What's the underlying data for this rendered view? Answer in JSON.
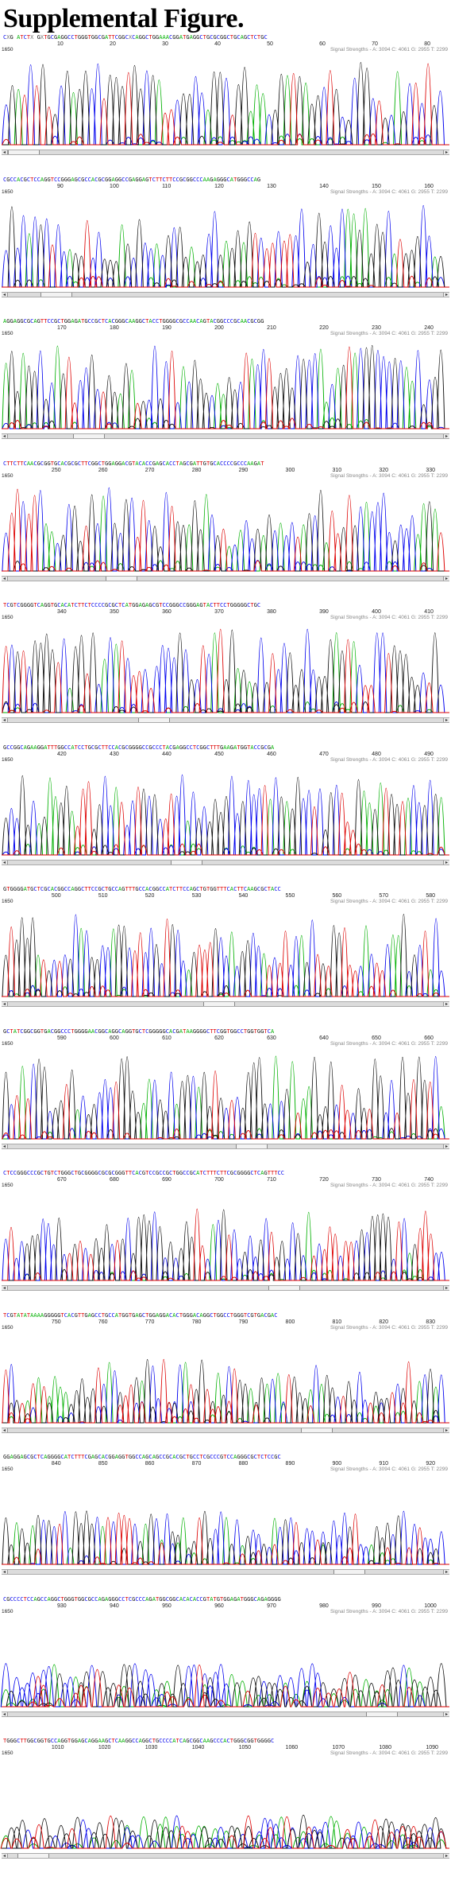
{
  "title": "Supplemental Figure.",
  "signal_strengths": "Signal Strengths - A: 3094 C: 4061 G: 2955 T: 2299",
  "scale_value": "1650",
  "colors": {
    "A": "#00b000",
    "C": "#0000ee",
    "G": "#111111",
    "T": "#dd0000"
  },
  "panels": [
    {
      "sequence": "CXG  ATCTX  GXTGCGAGGCCTGGGTGGCGATTCGGCXCAGGCTGGAAACGGATGAGGCTGCGCGGCTGCAGCTCTGC",
      "positions": [
        "10",
        "20",
        "30",
        "40",
        "50",
        "60",
        "70",
        "80"
      ],
      "scrollbar": true
    },
    {
      "sequence": "CGCCACGCTCCAGGTCCGGGAGCGCCACGCGGAGGCCGAGGAGTCTTCTTCCGCGGCCCAAGAGGGCATGGGCCAG",
      "positions": [
        "90",
        "100",
        "110",
        "120",
        "130",
        "140",
        "150",
        "160"
      ],
      "scrollbar": true
    },
    {
      "sequence": "AGGAGGCGCAGTTCCGCTGGAGATGCCGCTCACGGGCAAGGCTACCTGGGGCGCCAACAGTACGGCCCGCAACGCGG",
      "positions": [
        "170",
        "180",
        "190",
        "200",
        "210",
        "220",
        "230",
        "240"
      ],
      "scrollbar": true
    },
    {
      "sequence": "CTTCTTCAACGCGGTGCACGCGCTTCGGCTGGAGGACGTACACCGAGCACCTAGCGATTGTGCACCCCGCCCAAGAT",
      "positions": [
        "250",
        "260",
        "270",
        "280",
        "290",
        "300",
        "310",
        "320",
        "330"
      ],
      "scrollbar": true
    },
    {
      "sequence": "TCGTCGGGGTCAGGTGCACATCTTCTCCCCGCGCTCATGGAGAGCGTCCGGGCCGGGAGTACTTCCTGGGGGCTGC",
      "positions": [
        "340",
        "350",
        "360",
        "370",
        "380",
        "390",
        "400",
        "410"
      ],
      "scrollbar": true
    },
    {
      "sequence": "GCCGGCAGAAGGATTTGGCCATCCTGCGCTTCCACGCGGGGCCGCCCTACGAGGCCTCGGCTTTGAAGATGGTACCGCGA",
      "positions": [
        "420",
        "430",
        "440",
        "450",
        "460",
        "470",
        "480",
        "490"
      ],
      "scrollbar": true
    },
    {
      "sequence": "GTGGGGATGCTCGCACGGCCAGGCTTCCGCTGCCAGTTTGCCACGGCCATCTTCCAGCTGTGGTTTCACTTCAAGCGCTACC",
      "positions": [
        "500",
        "510",
        "520",
        "530",
        "540",
        "550",
        "560",
        "570",
        "580"
      ],
      "scrollbar": true
    },
    {
      "sequence": "GCTATCGGCGGTGACGGCCCTGGGGAACGGCAGGCAGGTGCTCGGGGGCACGATAAGGGGCTTCGGTGGCCTGGTGGTCA",
      "positions": [
        "590",
        "600",
        "610",
        "620",
        "630",
        "640",
        "650",
        "660"
      ],
      "scrollbar": true
    },
    {
      "sequence": "CTCCGGGCCCGCTGTCTGGGCTGCGGGGCGCGCGGGTTCACGTCCGCCGCTGGCCGCATCTTTCTTCGCGGGGCTCAGTTTCC",
      "positions": [
        "670",
        "680",
        "690",
        "700",
        "710",
        "720",
        "730",
        "740"
      ],
      "scrollbar": true
    },
    {
      "sequence": "TCGTATATAAAAGGGGGTCACGTTGAGCCTGCCATGGTGAGCTGGAGGACACTGGGACAGGCTGGCCTGGGTCGTGACGAC",
      "positions": [
        "750",
        "760",
        "770",
        "780",
        "790",
        "800",
        "810",
        "820",
        "830"
      ],
      "scrollbar": true
    },
    {
      "sequence": "GGAGGAGCGCTCAGGGGCATCTTTCGAGCACGGAGGTGGCCAGCAGCCGCACGCTGCCTCGCCCGTCCAGGGCGCTCTCCGC",
      "positions": [
        "840",
        "850",
        "860",
        "870",
        "880",
        "890",
        "900",
        "910",
        "920"
      ],
      "scrollbar": true
    },
    {
      "sequence": "CGCCCCTCCAGCCAGGCTGGGTGGCGCCAGAGGGCCTCGCCCAGATGGCGGCACACACCGTATGTGGAGATGGGCAGAGGGG",
      "positions": [
        "930",
        "940",
        "950",
        "960",
        "970",
        "980",
        "990",
        "1000"
      ],
      "scrollbar": true
    },
    {
      "sequence": "TGGGCTTGGCGGTGCCAGGTGGAGCAGGAAGCTCAAGGCCAGGCTGCCCCATCAGCGGCAAGCCCACTGGGCGGTGGGGC",
      "positions": [
        "1010",
        "1020",
        "1030",
        "1040",
        "1050",
        "1060",
        "1070",
        "1080",
        "1090"
      ],
      "scrollbar": true
    }
  ]
}
